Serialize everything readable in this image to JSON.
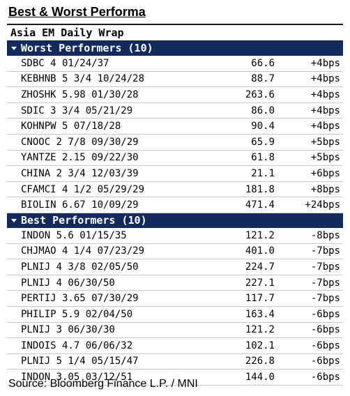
{
  "title": "Best & Worst Performa",
  "panel_title": "Asia EM Daily Wrap",
  "worst": {
    "header": "Worst Performers (10)",
    "rows": [
      {
        "name": "SDBC 4 01/24/37",
        "price": "66.6",
        "change": "+4bps"
      },
      {
        "name": "KEBHNB 5 3/4 10/24/28",
        "price": "88.7",
        "change": "+4bps"
      },
      {
        "name": "ZHOSHK 5.98 01/30/28",
        "price": "263.6",
        "change": "+4bps"
      },
      {
        "name": "SDIC 3 3/4 05/21/29",
        "price": "86.0",
        "change": "+4bps"
      },
      {
        "name": "KOHNPW 5 07/18/28",
        "price": "90.4",
        "change": "+4bps"
      },
      {
        "name": "CNOOC 2 7/8 09/30/29",
        "price": "65.9",
        "change": "+5bps"
      },
      {
        "name": "YANTZE 2.15 09/22/30",
        "price": "61.8",
        "change": "+5bps"
      },
      {
        "name": "CHINA 2 3/4 12/03/39",
        "price": "21.1",
        "change": "+6bps"
      },
      {
        "name": "CFAMCI 4 1/2 05/29/29",
        "price": "181.8",
        "change": "+8bps"
      },
      {
        "name": "BIOLIN 6.67 10/09/29",
        "price": "471.4",
        "change": "+24bps"
      }
    ]
  },
  "best": {
    "header": "Best Performers (10)",
    "rows": [
      {
        "name": "INDON 5.6 01/15/35",
        "price": "121.2",
        "change": "-8bps"
      },
      {
        "name": "CHJMAO 4 1/4 07/23/29",
        "price": "401.0",
        "change": "-7bps"
      },
      {
        "name": "PLNIJ 4 3/8 02/05/50",
        "price": "224.7",
        "change": "-7bps"
      },
      {
        "name": "PLNIJ 4 06/30/50",
        "price": "227.1",
        "change": "-7bps"
      },
      {
        "name": "PERTIJ 3.65 07/30/29",
        "price": "117.7",
        "change": "-7bps"
      },
      {
        "name": "PHILIP 5.9 02/04/50",
        "price": "163.4",
        "change": "-6bps"
      },
      {
        "name": "PLNIJ 3 06/30/30",
        "price": "121.2",
        "change": "-6bps"
      },
      {
        "name": "INDOIS 4.7 06/06/32",
        "price": "102.1",
        "change": "-6bps"
      },
      {
        "name": "PLNIJ 5 1/4 05/15/47",
        "price": "226.8",
        "change": "-6bps"
      },
      {
        "name": "INDON 3.05 03/12/51",
        "price": "144.0",
        "change": "-6bps"
      }
    ]
  },
  "source": "Source: Bloomberg Finance L.P. / MNI",
  "colors": {
    "section_header_bg": "#132a5c",
    "section_header_text": "#ffffff"
  },
  "icons": {
    "section_toggle": "caret-down-icon"
  }
}
